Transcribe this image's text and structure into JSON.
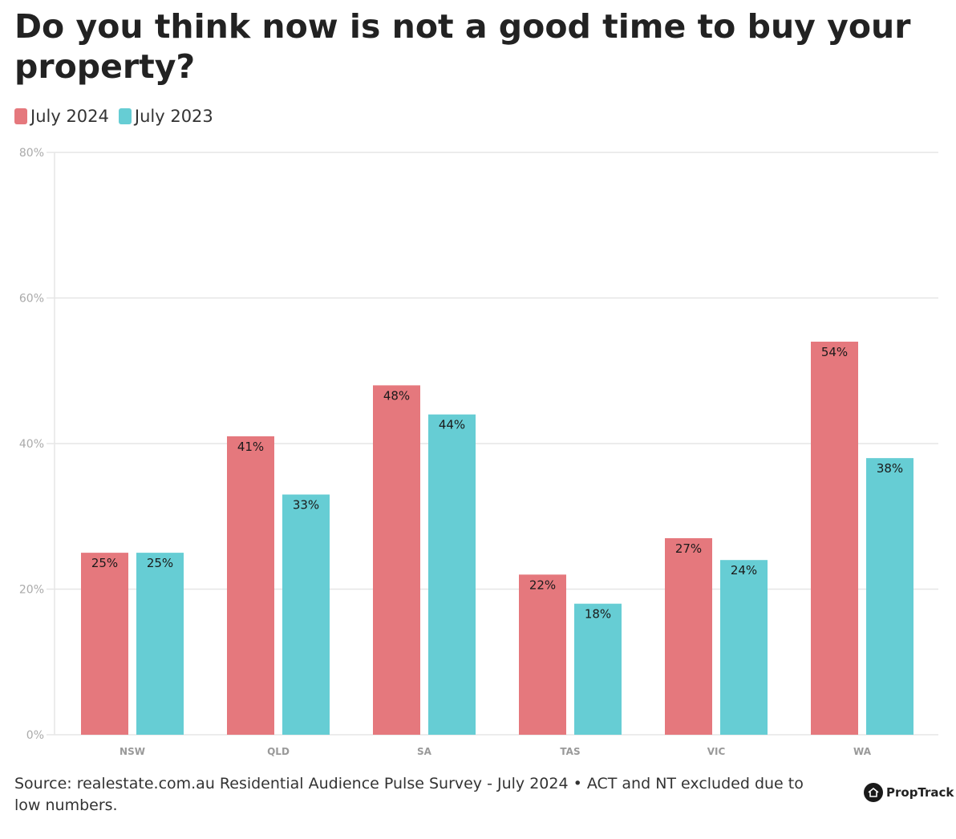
{
  "colors": {
    "series_2024": "#e5787d",
    "series_2023": "#66cdd4",
    "grid": "#e6e6e6",
    "tick": "#aaaaaa"
  },
  "logo": {
    "icon": "house-icon",
    "label": "PropTrack"
  },
  "source_text": "Source: realestate.com.au Residential Audience Pulse Survey - July 2024 • ACT and NT excluded due to low numbers.",
  "chart_data": {
    "type": "bar",
    "title": "Do you think now is not a good time to buy your property?",
    "categories": [
      "NSW",
      "QLD",
      "SA",
      "TAS",
      "VIC",
      "WA"
    ],
    "series": [
      {
        "name": "July 2024",
        "values": [
          25,
          41,
          48,
          22,
          27,
          54
        ],
        "labels": [
          "25%",
          "41%",
          "48%",
          "22%",
          "27%",
          "54%"
        ]
      },
      {
        "name": "July 2023",
        "values": [
          25,
          33,
          44,
          18,
          24,
          38
        ],
        "labels": [
          "25%",
          "33%",
          "44%",
          "18%",
          "24%",
          "38%"
        ]
      }
    ],
    "ylim": [
      0,
      80
    ],
    "yticks": [
      0,
      20,
      40,
      60,
      80
    ],
    "ytick_labels": [
      "0%",
      "20%",
      "40%",
      "60%",
      "80%"
    ],
    "grid": true,
    "legend": "top-left"
  }
}
